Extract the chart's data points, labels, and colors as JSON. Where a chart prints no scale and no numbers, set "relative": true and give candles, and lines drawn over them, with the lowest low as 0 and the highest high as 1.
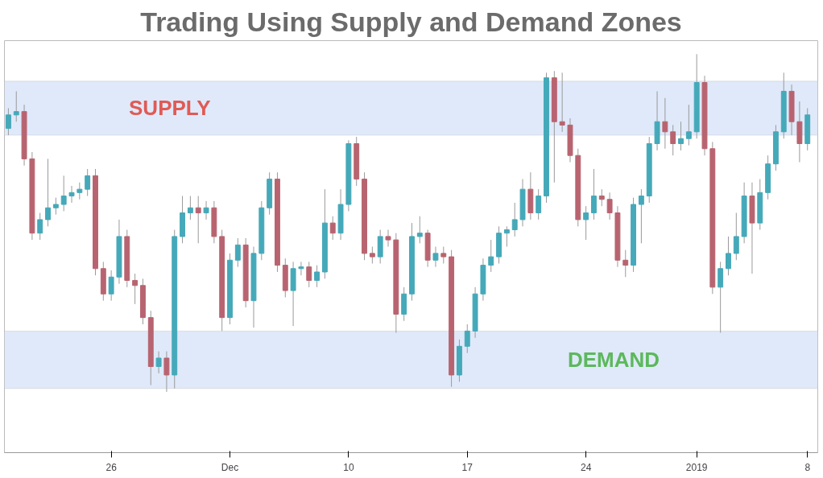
{
  "chart_data": {
    "type": "candlestick",
    "title": "Trading Using Supply and Demand Zones",
    "relative": true,
    "grid": false,
    "categories": [
      null,
      null,
      null,
      null,
      null,
      null,
      null,
      null,
      null,
      null,
      null,
      null,
      null,
      "26",
      null,
      null,
      null,
      null,
      null,
      null,
      null,
      null,
      null,
      null,
      null,
      null,
      null,
      null,
      "Dec",
      null,
      null,
      null,
      null,
      null,
      null,
      null,
      null,
      null,
      null,
      null,
      null,
      null,
      null,
      "10",
      null,
      null,
      null,
      null,
      null,
      null,
      null,
      null,
      null,
      null,
      null,
      null,
      null,
      null,
      "17",
      null,
      null,
      null,
      null,
      null,
      null,
      null,
      null,
      null,
      null,
      null,
      null,
      null,
      null,
      "24",
      null,
      null,
      null,
      null,
      null,
      null,
      null,
      null,
      null,
      null,
      null,
      null,
      null,
      "2019",
      null,
      null,
      null,
      null,
      null,
      null,
      null,
      null,
      null,
      null,
      null,
      null,
      null,
      "8"
    ],
    "ohlc": [
      [
        0.78,
        0.84,
        0.76,
        0.82
      ],
      [
        0.82,
        0.89,
        0.8,
        0.83
      ],
      [
        0.83,
        0.85,
        0.67,
        0.69
      ],
      [
        0.69,
        0.71,
        0.45,
        0.47
      ],
      [
        0.47,
        0.53,
        0.45,
        0.51
      ],
      [
        0.51,
        0.69,
        0.49,
        0.545
      ],
      [
        0.545,
        0.575,
        0.525,
        0.555
      ],
      [
        0.555,
        0.64,
        0.535,
        0.58
      ],
      [
        0.58,
        0.61,
        0.56,
        0.59
      ],
      [
        0.59,
        0.62,
        0.57,
        0.6
      ],
      [
        0.6,
        0.66,
        0.58,
        0.64
      ],
      [
        0.64,
        0.66,
        0.345,
        0.365
      ],
      [
        0.365,
        0.385,
        0.27,
        0.29
      ],
      [
        0.29,
        0.36,
        0.27,
        0.34
      ],
      [
        0.34,
        0.51,
        0.32,
        0.46
      ],
      [
        0.46,
        0.48,
        0.31,
        0.33
      ],
      [
        0.33,
        0.35,
        0.26,
        0.315
      ],
      [
        0.315,
        0.335,
        0.2,
        0.22
      ],
      [
        0.22,
        0.24,
        0.02,
        0.075
      ],
      [
        0.075,
        0.12,
        0.055,
        0.1
      ],
      [
        0.1,
        0.12,
        0.0,
        0.05
      ],
      [
        0.05,
        0.48,
        0.01,
        0.46
      ],
      [
        0.46,
        0.58,
        0.44,
        0.53
      ],
      [
        0.53,
        0.58,
        0.51,
        0.545
      ],
      [
        0.545,
        0.58,
        0.44,
        0.53
      ],
      [
        0.53,
        0.565,
        0.51,
        0.545
      ],
      [
        0.545,
        0.565,
        0.44,
        0.46
      ],
      [
        0.46,
        0.48,
        0.18,
        0.22
      ],
      [
        0.22,
        0.41,
        0.2,
        0.39
      ],
      [
        0.39,
        0.455,
        0.37,
        0.435
      ],
      [
        0.435,
        0.455,
        0.25,
        0.27
      ],
      [
        0.27,
        0.43,
        0.19,
        0.41
      ],
      [
        0.41,
        0.565,
        0.39,
        0.545
      ],
      [
        0.545,
        0.65,
        0.525,
        0.63
      ],
      [
        0.63,
        0.65,
        0.355,
        0.375
      ],
      [
        0.375,
        0.395,
        0.28,
        0.3
      ],
      [
        0.3,
        0.385,
        0.195,
        0.365
      ],
      [
        0.365,
        0.385,
        0.345,
        0.37
      ],
      [
        0.37,
        0.385,
        0.31,
        0.33
      ],
      [
        0.33,
        0.375,
        0.31,
        0.355
      ],
      [
        0.355,
        0.6,
        0.335,
        0.5
      ],
      [
        0.5,
        0.52,
        0.45,
        0.47
      ],
      [
        0.47,
        0.6,
        0.45,
        0.555
      ],
      [
        0.555,
        0.745,
        0.535,
        0.735
      ],
      [
        0.735,
        0.755,
        0.61,
        0.63
      ],
      [
        0.63,
        0.65,
        0.39,
        0.41
      ],
      [
        0.41,
        0.43,
        0.38,
        0.4
      ],
      [
        0.4,
        0.48,
        0.38,
        0.46
      ],
      [
        0.46,
        0.48,
        0.43,
        0.45
      ],
      [
        0.45,
        0.47,
        0.175,
        0.23
      ],
      [
        0.23,
        0.31,
        0.21,
        0.29
      ],
      [
        0.29,
        0.5,
        0.27,
        0.46
      ],
      [
        0.46,
        0.52,
        0.44,
        0.47
      ],
      [
        0.47,
        0.48,
        0.37,
        0.39
      ],
      [
        0.39,
        0.43,
        0.37,
        0.41
      ],
      [
        0.41,
        0.43,
        0.38,
        0.4
      ],
      [
        0.4,
        0.42,
        0.015,
        0.05
      ],
      [
        0.05,
        0.155,
        0.03,
        0.135
      ],
      [
        0.135,
        0.2,
        0.115,
        0.18
      ],
      [
        0.18,
        0.31,
        0.16,
        0.29
      ],
      [
        0.29,
        0.395,
        0.27,
        0.375
      ],
      [
        0.375,
        0.45,
        0.355,
        0.4
      ],
      [
        0.4,
        0.49,
        0.38,
        0.47
      ],
      [
        0.47,
        0.49,
        0.43,
        0.48
      ],
      [
        0.48,
        0.56,
        0.46,
        0.51
      ],
      [
        0.51,
        0.63,
        0.49,
        0.6
      ],
      [
        0.6,
        0.65,
        0.51,
        0.53
      ],
      [
        0.53,
        0.6,
        0.51,
        0.58
      ],
      [
        0.58,
        0.945,
        0.56,
        0.93
      ],
      [
        0.93,
        0.95,
        0.62,
        0.8
      ],
      [
        0.8,
        0.945,
        0.77,
        0.79
      ],
      [
        0.79,
        0.81,
        0.68,
        0.7
      ],
      [
        0.7,
        0.72,
        0.49,
        0.51
      ],
      [
        0.51,
        0.55,
        0.45,
        0.53
      ],
      [
        0.53,
        0.66,
        0.51,
        0.58
      ],
      [
        0.58,
        0.6,
        0.55,
        0.57
      ],
      [
        0.57,
        0.59,
        0.51,
        0.53
      ],
      [
        0.53,
        0.55,
        0.37,
        0.39
      ],
      [
        0.39,
        0.42,
        0.34,
        0.375
      ],
      [
        0.375,
        0.575,
        0.355,
        0.555
      ],
      [
        0.555,
        0.6,
        0.44,
        0.58
      ],
      [
        0.58,
        0.755,
        0.56,
        0.735
      ],
      [
        0.735,
        0.89,
        0.715,
        0.8
      ],
      [
        0.8,
        0.87,
        0.72,
        0.77
      ],
      [
        0.77,
        0.79,
        0.7,
        0.735
      ],
      [
        0.735,
        0.8,
        0.715,
        0.75
      ],
      [
        0.75,
        0.85,
        0.73,
        0.77
      ],
      [
        0.77,
        1.0,
        0.75,
        0.916
      ],
      [
        0.916,
        0.936,
        0.7,
        0.72
      ],
      [
        0.72,
        0.74,
        0.29,
        0.31
      ],
      [
        0.31,
        0.385,
        0.175,
        0.365
      ],
      [
        0.365,
        0.46,
        0.345,
        0.41
      ],
      [
        0.41,
        0.53,
        0.39,
        0.46
      ],
      [
        0.46,
        0.62,
        0.44,
        0.58
      ],
      [
        0.58,
        0.62,
        0.35,
        0.5
      ],
      [
        0.5,
        0.63,
        0.48,
        0.59
      ],
      [
        0.59,
        0.7,
        0.57,
        0.675
      ],
      [
        0.675,
        0.79,
        0.655,
        0.77
      ],
      [
        0.77,
        0.945,
        0.75,
        0.89
      ],
      [
        0.89,
        0.91,
        0.76,
        0.8
      ],
      [
        0.8,
        0.86,
        0.68,
        0.735
      ],
      [
        0.735,
        0.84,
        0.715,
        0.82
      ]
    ],
    "colors": [
      "#45a9b9",
      "#45a9b9",
      "#b86470",
      "#b86470",
      "#45a9b9",
      "#45a9b9",
      "#45a9b9",
      "#45a9b9",
      "#45a9b9",
      "#45a9b9",
      "#45a9b9",
      "#b86470",
      "#b86470",
      "#45a9b9",
      "#45a9b9",
      "#b86470",
      "#b86470",
      "#b86470",
      "#b86470",
      "#45a9b9",
      "#b86470",
      "#45a9b9",
      "#45a9b9",
      "#45a9b9",
      "#b86470",
      "#45a9b9",
      "#b86470",
      "#b86470",
      "#45a9b9",
      "#45a9b9",
      "#b86470",
      "#45a9b9",
      "#45a9b9",
      "#45a9b9",
      "#b86470",
      "#b86470",
      "#45a9b9",
      "#45a9b9",
      "#b86470",
      "#45a9b9",
      "#45a9b9",
      "#b86470",
      "#45a9b9",
      "#45a9b9",
      "#b86470",
      "#b86470",
      "#b86470",
      "#45a9b9",
      "#b86470",
      "#b86470",
      "#45a9b9",
      "#45a9b9",
      "#45a9b9",
      "#b86470",
      "#45a9b9",
      "#b86470",
      "#b86470",
      "#45a9b9",
      "#45a9b9",
      "#45a9b9",
      "#45a9b9",
      "#45a9b9",
      "#45a9b9",
      "#45a9b9",
      "#45a9b9",
      "#45a9b9",
      "#b86470",
      "#45a9b9",
      "#45a9b9",
      "#b86470",
      "#b86470",
      "#b86470",
      "#b86470",
      "#45a9b9",
      "#45a9b9",
      "#b86470",
      "#b86470",
      "#b86470",
      "#b86470",
      "#45a9b9",
      "#45a9b9",
      "#45a9b9",
      "#45a9b9",
      "#b86470",
      "#b86470",
      "#45a9b9",
      "#45a9b9",
      "#45a9b9",
      "#b86470",
      "#b86470",
      "#45a9b9",
      "#45a9b9",
      "#45a9b9",
      "#45a9b9",
      "#b86470",
      "#45a9b9",
      "#45a9b9",
      "#45a9b9",
      "#45a9b9",
      "#b86470",
      "#b86470",
      "#45a9b9"
    ],
    "bands": [
      {
        "axis": "y",
        "from": 0.76,
        "to": 0.92,
        "label": "SUPPLY",
        "color": "#dfe9f9"
      },
      {
        "axis": "y",
        "from": 0.01,
        "to": 0.18,
        "label": "DEMAND",
        "color": "#dfe9f9"
      }
    ]
  }
}
